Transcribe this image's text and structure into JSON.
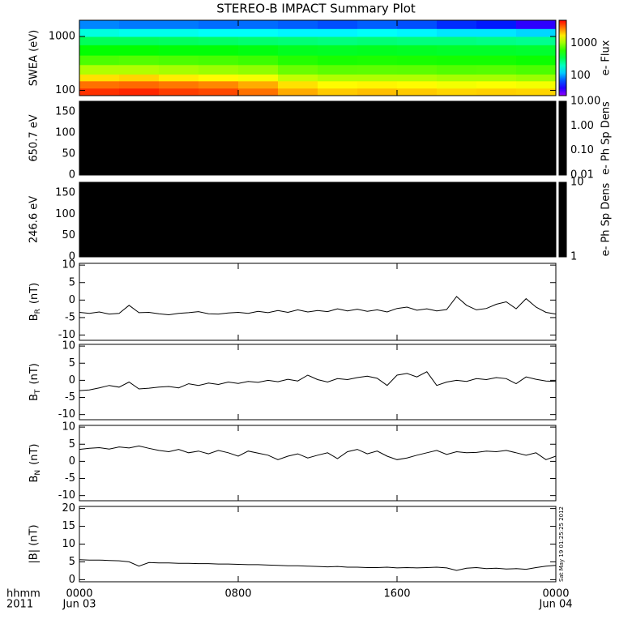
{
  "title": "STEREO-B IMPACT Summary Plot",
  "x_axis": {
    "xlim": [
      0,
      24
    ],
    "xticks": [
      {
        "value": 0,
        "label": "0000"
      },
      {
        "value": 8,
        "label": "0800"
      },
      {
        "value": 16,
        "label": "1600"
      },
      {
        "value": 24,
        "label": "0000"
      }
    ],
    "date_labels": [
      {
        "value": 0,
        "label": "Jun 03"
      },
      {
        "value": 24,
        "label": "Jun 04"
      }
    ],
    "row_labels": [
      "hhmm",
      "2011"
    ]
  },
  "timestamp": "Sat May 19 01:25:25 2012",
  "chart_data": [
    {
      "type": "heatmap",
      "ylabel": "SWEA (eV)",
      "ylog": true,
      "ylim": [
        80,
        2000
      ],
      "yticks": [
        100,
        1000
      ],
      "x_edges": [
        0,
        2,
        4,
        6,
        8,
        10,
        12,
        14,
        16,
        18,
        20,
        22,
        24
      ],
      "y_edges": [
        80,
        110,
        150,
        200,
        300,
        450,
        700,
        1000,
        1400,
        2000
      ],
      "z": [
        [
          4000,
          3000,
          1800,
          1100,
          700,
          500,
          330,
          180,
          90
        ],
        [
          4200,
          3100,
          1900,
          1100,
          720,
          500,
          330,
          170,
          85
        ],
        [
          3800,
          2900,
          1700,
          1050,
          700,
          480,
          320,
          170,
          85
        ],
        [
          3600,
          2700,
          1600,
          1000,
          680,
          480,
          310,
          160,
          80
        ],
        [
          3000,
          2300,
          1500,
          950,
          650,
          460,
          300,
          160,
          80
        ],
        [
          2300,
          1800,
          1200,
          800,
          580,
          430,
          290,
          150,
          75
        ],
        [
          2000,
          1600,
          1100,
          750,
          550,
          420,
          280,
          150,
          70
        ],
        [
          2100,
          1650,
          1100,
          760,
          560,
          430,
          290,
          160,
          75
        ],
        [
          2000,
          1600,
          1100,
          750,
          550,
          420,
          280,
          150,
          70
        ],
        [
          1900,
          1500,
          1050,
          720,
          540,
          410,
          280,
          140,
          60
        ],
        [
          1950,
          1550,
          1050,
          730,
          540,
          410,
          270,
          140,
          55
        ],
        [
          1900,
          1500,
          1000,
          700,
          520,
          400,
          260,
          130,
          40
        ]
      ],
      "colorbar": {
        "colormap": "rainbow",
        "zlog": true,
        "zlim": [
          25,
          5000
        ],
        "zticks": [
          100,
          1000
        ],
        "zlabel": "e- Flux"
      }
    },
    {
      "type": "heatmap",
      "ylabel": "650.7 eV",
      "ylim": [
        0,
        175
      ],
      "yticks": [
        0,
        50,
        100,
        150
      ],
      "fill": "#000000",
      "colorbar": {
        "colormap": "solid",
        "zlog": true,
        "zlim": [
          0.01,
          10
        ],
        "zticks": [
          {
            "value": 0.01,
            "label": "0.01"
          },
          {
            "value": 0.1,
            "label": "0.10"
          },
          {
            "value": 1,
            "label": "1.00"
          },
          {
            "value": 10,
            "label": "10.00"
          }
        ],
        "zlabel": "e- Ph Sp Dens"
      }
    },
    {
      "type": "heatmap",
      "ylabel": "246.6 eV",
      "ylim": [
        0,
        175
      ],
      "yticks": [
        0,
        50,
        100,
        150
      ],
      "fill": "#000000",
      "colorbar": {
        "colormap": "solid",
        "zlog": true,
        "zlim": [
          1,
          10
        ],
        "zticks": [
          1,
          10
        ],
        "zlabel": "e- Ph Sp Dens"
      }
    },
    {
      "type": "line",
      "ylabel": {
        "text": "B",
        "sub": "R",
        "unit": "(nT)"
      },
      "ylim": [
        -11.5,
        10.5
      ],
      "yticks": [
        -10,
        -5,
        0,
        5,
        10
      ],
      "x": [
        0,
        0.5,
        1,
        1.5,
        2,
        2.5,
        3,
        3.5,
        4,
        4.5,
        5,
        5.5,
        6,
        6.5,
        7,
        7.5,
        8,
        8.5,
        9,
        9.5,
        10,
        10.5,
        11,
        11.5,
        12,
        12.5,
        13,
        13.5,
        14,
        14.5,
        15,
        15.5,
        16,
        16.5,
        17,
        17.5,
        18,
        18.5,
        19,
        19.5,
        20,
        20.5,
        21,
        21.5,
        22,
        22.5,
        23,
        23.5,
        24
      ],
      "values": [
        -3.5,
        -3.8,
        -3.4,
        -4.0,
        -3.8,
        -1.5,
        -3.6,
        -3.5,
        -3.9,
        -4.2,
        -3.8,
        -3.6,
        -3.3,
        -3.9,
        -4.0,
        -3.7,
        -3.5,
        -3.8,
        -3.2,
        -3.6,
        -3.0,
        -3.5,
        -2.8,
        -3.4,
        -3.0,
        -3.3,
        -2.5,
        -3.1,
        -2.6,
        -3.2,
        -2.8,
        -3.4,
        -2.4,
        -2.0,
        -2.9,
        -2.5,
        -3.1,
        -2.7,
        1.0,
        -1.5,
        -2.8,
        -2.4,
        -1.2,
        -0.5,
        -2.5,
        0.4,
        -2.0,
        -3.5,
        -4.0
      ],
      "color": "#000000"
    },
    {
      "type": "line",
      "ylabel": {
        "text": "B",
        "sub": "T",
        "unit": "(nT)"
      },
      "ylim": [
        -11.5,
        10.5
      ],
      "yticks": [
        -10,
        -5,
        0,
        5,
        10
      ],
      "x": [
        0,
        0.5,
        1,
        1.5,
        2,
        2.5,
        3,
        3.5,
        4,
        4.5,
        5,
        5.5,
        6,
        6.5,
        7,
        7.5,
        8,
        8.5,
        9,
        9.5,
        10,
        10.5,
        11,
        11.5,
        12,
        12.5,
        13,
        13.5,
        14,
        14.5,
        15,
        15.5,
        16,
        16.5,
        17,
        17.5,
        18,
        18.5,
        19,
        19.5,
        20,
        20.5,
        21,
        21.5,
        22,
        22.5,
        23,
        23.5,
        24
      ],
      "values": [
        -3.0,
        -2.8,
        -2.2,
        -1.5,
        -2.0,
        -0.5,
        -2.5,
        -2.3,
        -2.0,
        -1.8,
        -2.2,
        -1.0,
        -1.5,
        -0.8,
        -1.2,
        -0.5,
        -0.9,
        -0.3,
        -0.6,
        0.0,
        -0.4,
        0.3,
        -0.2,
        1.5,
        0.2,
        -0.5,
        0.5,
        0.2,
        0.8,
        1.2,
        0.6,
        -1.5,
        1.5,
        2.0,
        1.0,
        2.5,
        -1.5,
        -0.5,
        0.0,
        -0.3,
        0.5,
        0.2,
        0.8,
        0.5,
        -1.0,
        1.0,
        0.3,
        -0.2,
        -0.3
      ],
      "color": "#000000"
    },
    {
      "type": "line",
      "ylabel": {
        "text": "B",
        "sub": "N",
        "unit": "(nT)"
      },
      "ylim": [
        -11.5,
        10.5
      ],
      "yticks": [
        -10,
        -5,
        0,
        5,
        10
      ],
      "x": [
        0,
        0.5,
        1,
        1.5,
        2,
        2.5,
        3,
        3.5,
        4,
        4.5,
        5,
        5.5,
        6,
        6.5,
        7,
        7.5,
        8,
        8.5,
        9,
        9.5,
        10,
        10.5,
        11,
        11.5,
        12,
        12.5,
        13,
        13.5,
        14,
        14.5,
        15,
        15.5,
        16,
        16.5,
        17,
        17.5,
        18,
        18.5,
        19,
        19.5,
        20,
        20.5,
        21,
        21.5,
        22,
        22.5,
        23,
        23.5,
        24
      ],
      "values": [
        3.5,
        3.8,
        4.0,
        3.6,
        4.2,
        3.9,
        4.5,
        3.8,
        3.2,
        2.8,
        3.5,
        2.5,
        3.0,
        2.2,
        3.2,
        2.5,
        1.5,
        3.0,
        2.4,
        1.8,
        0.5,
        1.5,
        2.2,
        1.0,
        1.8,
        2.5,
        0.8,
        2.8,
        3.5,
        2.2,
        3.0,
        1.5,
        0.5,
        1.0,
        1.8,
        2.5,
        3.2,
        2.0,
        2.8,
        2.5,
        2.6,
        3.0,
        2.8,
        3.2,
        2.5,
        1.8,
        2.5,
        0.5,
        1.5
      ],
      "color": "#000000"
    },
    {
      "type": "line",
      "ylabel": "|B| (nT)",
      "ylim": [
        -0.6,
        20.6
      ],
      "yticks": [
        0,
        5,
        10,
        15,
        20
      ],
      "x": [
        0,
        0.5,
        1,
        1.5,
        2,
        2.5,
        3,
        3.5,
        4,
        4.5,
        5,
        5.5,
        6,
        6.5,
        7,
        7.5,
        8,
        8.5,
        9,
        9.5,
        10,
        10.5,
        11,
        11.5,
        12,
        12.5,
        13,
        13.5,
        14,
        14.5,
        15,
        15.5,
        16,
        16.5,
        17,
        17.5,
        18,
        18.5,
        19,
        19.5,
        20,
        20.5,
        21,
        21.5,
        22,
        22.5,
        23,
        23.5,
        24
      ],
      "values": [
        5.6,
        5.5,
        5.5,
        5.4,
        5.3,
        5.0,
        3.8,
        4.8,
        4.7,
        4.7,
        4.6,
        4.6,
        4.5,
        4.5,
        4.4,
        4.4,
        4.3,
        4.2,
        4.2,
        4.1,
        4.0,
        3.9,
        3.9,
        3.8,
        3.7,
        3.6,
        3.7,
        3.5,
        3.5,
        3.4,
        3.4,
        3.5,
        3.3,
        3.4,
        3.3,
        3.4,
        3.5,
        3.3,
        2.6,
        3.2,
        3.4,
        3.1,
        3.2,
        3.0,
        3.1,
        2.9,
        3.4,
        3.8,
        4.0
      ],
      "color": "#000000"
    }
  ]
}
